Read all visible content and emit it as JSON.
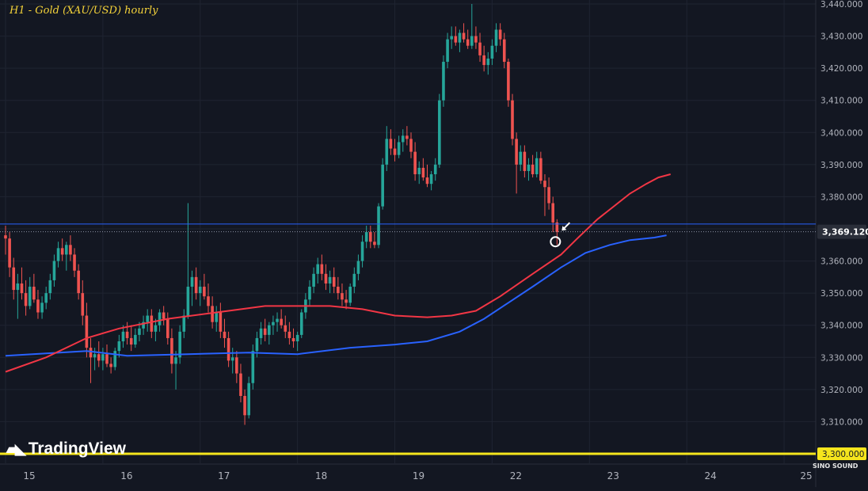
{
  "title": "H1 - Gold (XAU/USD) hourly",
  "brand": "TradingView",
  "watermark": "SINO SOUND",
  "chart_data": {
    "type": "candlestick",
    "title": "H1 - Gold (XAU/USD) hourly",
    "ylim": [
      3300,
      3440
    ],
    "yticks": [
      3310,
      3320,
      3330,
      3340,
      3350,
      3360,
      3370,
      3380,
      3390,
      3400,
      3410,
      3420,
      3430,
      3440
    ],
    "ytick_labels": [
      "3,310.000",
      "3,320.000",
      "3,330.000",
      "3,340.000",
      "3,350.000",
      "3,360.000",
      "3,370.000",
      "3,380.000",
      "3,390.000",
      "3,400.000",
      "3,410.000",
      "3,420.000",
      "3,430.000",
      "3,440.000"
    ],
    "xticks": [
      {
        "i": 0,
        "label": "15"
      },
      {
        "i": 24,
        "label": "16"
      },
      {
        "i": 48,
        "label": "17"
      },
      {
        "i": 72,
        "label": "18"
      },
      {
        "i": 96,
        "label": "19"
      },
      {
        "i": 120,
        "label": "22"
      },
      {
        "i": 144,
        "label": "23"
      },
      {
        "i": 168,
        "label": "24"
      },
      {
        "i": 192,
        "label": "25"
      }
    ],
    "price_label": "3,369.120",
    "price_value": 3369.12,
    "support_label": "3,300.000",
    "support_value": 3300,
    "resistance_level": 3371.5,
    "colors": {
      "up": "#26a69a",
      "down": "#ef5350",
      "ma_red": "#f23645",
      "ma_blue": "#2962ff",
      "support": "#f5e51d",
      "price_box": "#2a2e39",
      "bg": "#131722",
      "grid": "#1f2431"
    },
    "candles": [
      [
        3368,
        3371,
        3362,
        3367
      ],
      [
        3367,
        3369,
        3355,
        3358
      ],
      [
        3358,
        3361,
        3348,
        3351
      ],
      [
        3351,
        3356,
        3342,
        3353
      ],
      [
        3353,
        3358,
        3348,
        3350
      ],
      [
        3350,
        3354,
        3343,
        3346
      ],
      [
        3346,
        3355,
        3345,
        3352
      ],
      [
        3352,
        3356,
        3347,
        3348
      ],
      [
        3348,
        3351,
        3342,
        3344
      ],
      [
        3344,
        3349,
        3342,
        3347
      ],
      [
        3347,
        3352,
        3345,
        3350
      ],
      [
        3350,
        3356,
        3348,
        3354
      ],
      [
        3354,
        3362,
        3352,
        3360
      ],
      [
        3360,
        3366,
        3358,
        3364
      ],
      [
        3364,
        3367,
        3360,
        3362
      ],
      [
        3362,
        3366,
        3357,
        3365
      ],
      [
        3365,
        3368,
        3360,
        3362
      ],
      [
        3362,
        3364,
        3355,
        3357
      ],
      [
        3357,
        3359,
        3348,
        3350
      ],
      [
        3350,
        3354,
        3340,
        3343
      ],
      [
        3343,
        3347,
        3330,
        3333
      ],
      [
        3333,
        3336,
        3322,
        3330
      ],
      [
        3330,
        3333,
        3326,
        3331
      ],
      [
        3331,
        3335,
        3327,
        3329
      ],
      [
        3329,
        3333,
        3326,
        3331
      ],
      [
        3331,
        3334,
        3327,
        3328
      ],
      [
        3328,
        3330,
        3325,
        3327
      ],
      [
        3327,
        3333,
        3326,
        3332
      ],
      [
        3332,
        3337,
        3330,
        3335
      ],
      [
        3335,
        3340,
        3333,
        3338
      ],
      [
        3338,
        3341,
        3334,
        3336
      ],
      [
        3336,
        3340,
        3332,
        3334
      ],
      [
        3334,
        3339,
        3333,
        3337
      ],
      [
        3337,
        3341,
        3335,
        3339
      ],
      [
        3339,
        3343,
        3337,
        3341
      ],
      [
        3341,
        3345,
        3338,
        3343
      ],
      [
        3343,
        3345,
        3336,
        3338
      ],
      [
        3338,
        3342,
        3335,
        3340
      ],
      [
        3340,
        3345,
        3338,
        3344
      ],
      [
        3344,
        3346,
        3340,
        3342
      ],
      [
        3342,
        3344,
        3334,
        3336
      ],
      [
        3336,
        3339,
        3325,
        3328
      ],
      [
        3328,
        3332,
        3320,
        3330
      ],
      [
        3330,
        3340,
        3328,
        3338
      ],
      [
        3338,
        3345,
        3336,
        3343
      ],
      [
        3343,
        3378,
        3342,
        3352
      ],
      [
        3352,
        3357,
        3346,
        3355
      ],
      [
        3355,
        3358,
        3348,
        3350
      ],
      [
        3350,
        3354,
        3346,
        3352
      ],
      [
        3352,
        3356,
        3348,
        3349
      ],
      [
        3349,
        3353,
        3344,
        3346
      ],
      [
        3346,
        3349,
        3339,
        3341
      ],
      [
        3341,
        3346,
        3338,
        3344
      ],
      [
        3344,
        3347,
        3336,
        3338
      ],
      [
        3338,
        3342,
        3333,
        3336
      ],
      [
        3336,
        3338,
        3327,
        3329
      ],
      [
        3329,
        3333,
        3325,
        3330
      ],
      [
        3330,
        3332,
        3322,
        3325
      ],
      [
        3325,
        3328,
        3316,
        3318
      ],
      [
        3318,
        3320,
        3309,
        3312
      ],
      [
        3312,
        3324,
        3311,
        3322
      ],
      [
        3322,
        3334,
        3320,
        3332
      ],
      [
        3332,
        3338,
        3330,
        3336
      ],
      [
        3336,
        3341,
        3334,
        3339
      ],
      [
        3339,
        3342,
        3335,
        3337
      ],
      [
        3337,
        3341,
        3334,
        3340
      ],
      [
        3340,
        3343,
        3337,
        3341
      ],
      [
        3341,
        3344,
        3338,
        3342
      ],
      [
        3342,
        3345,
        3339,
        3340
      ],
      [
        3340,
        3343,
        3336,
        3338
      ],
      [
        3338,
        3341,
        3334,
        3336
      ],
      [
        3336,
        3339,
        3333,
        3335
      ],
      [
        3335,
        3338,
        3332,
        3337
      ],
      [
        3337,
        3345,
        3336,
        3344
      ],
      [
        3344,
        3350,
        3342,
        3348
      ],
      [
        3348,
        3354,
        3346,
        3352
      ],
      [
        3352,
        3358,
        3350,
        3356
      ],
      [
        3356,
        3361,
        3353,
        3359
      ],
      [
        3359,
        3362,
        3354,
        3356
      ],
      [
        3356,
        3359,
        3351,
        3353
      ],
      [
        3353,
        3357,
        3350,
        3355
      ],
      [
        3355,
        3358,
        3350,
        3352
      ],
      [
        3352,
        3355,
        3348,
        3350
      ],
      [
        3350,
        3353,
        3346,
        3348
      ],
      [
        3348,
        3351,
        3345,
        3347
      ],
      [
        3347,
        3353,
        3346,
        3352
      ],
      [
        3352,
        3358,
        3350,
        3356
      ],
      [
        3356,
        3362,
        3354,
        3360
      ],
      [
        3360,
        3368,
        3358,
        3366
      ],
      [
        3366,
        3371,
        3364,
        3369
      ],
      [
        3369,
        3371,
        3364,
        3366
      ],
      [
        3366,
        3369,
        3364,
        3365
      ],
      [
        3365,
        3378,
        3364,
        3377
      ],
      [
        3377,
        3392,
        3376,
        3390
      ],
      [
        3390,
        3402,
        3388,
        3398
      ],
      [
        3398,
        3401,
        3393,
        3395
      ],
      [
        3395,
        3398,
        3391,
        3393
      ],
      [
        3393,
        3399,
        3392,
        3397
      ],
      [
        3397,
        3401,
        3394,
        3399
      ],
      [
        3399,
        3402,
        3396,
        3398
      ],
      [
        3398,
        3400,
        3392,
        3394
      ],
      [
        3394,
        3397,
        3385,
        3387
      ],
      [
        3387,
        3391,
        3384,
        3389
      ],
      [
        3389,
        3392,
        3385,
        3386
      ],
      [
        3386,
        3390,
        3383,
        3384
      ],
      [
        3384,
        3388,
        3382,
        3387
      ],
      [
        3387,
        3392,
        3385,
        3390
      ],
      [
        3390,
        3412,
        3389,
        3410
      ],
      [
        3410,
        3424,
        3408,
        3422
      ],
      [
        3422,
        3431,
        3420,
        3429
      ],
      [
        3429,
        3433,
        3426,
        3430
      ],
      [
        3430,
        3433,
        3427,
        3428
      ],
      [
        3428,
        3432,
        3425,
        3431
      ],
      [
        3431,
        3434,
        3428,
        3429
      ],
      [
        3429,
        3432,
        3426,
        3427
      ],
      [
        3427,
        3440,
        3426,
        3430
      ],
      [
        3430,
        3433,
        3426,
        3428
      ],
      [
        3428,
        3431,
        3422,
        3424
      ],
      [
        3424,
        3427,
        3419,
        3421
      ],
      [
        3421,
        3425,
        3418,
        3423
      ],
      [
        3423,
        3429,
        3421,
        3427
      ],
      [
        3427,
        3434,
        3425,
        3432
      ],
      [
        3432,
        3434,
        3427,
        3429
      ],
      [
        3429,
        3431,
        3420,
        3422
      ],
      [
        3422,
        3423,
        3408,
        3410
      ],
      [
        3410,
        3412,
        3396,
        3398
      ],
      [
        3398,
        3400,
        3381,
        3390
      ],
      [
        3390,
        3396,
        3388,
        3394
      ],
      [
        3394,
        3396,
        3386,
        3388
      ],
      [
        3388,
        3392,
        3385,
        3390
      ],
      [
        3390,
        3393,
        3386,
        3387
      ],
      [
        3387,
        3394,
        3386,
        3392
      ],
      [
        3392,
        3394,
        3384,
        3385
      ],
      [
        3385,
        3387,
        3374,
        3383
      ],
      [
        3383,
        3386,
        3376,
        3378
      ],
      [
        3378,
        3380,
        3369,
        3372
      ],
      [
        3372,
        3373,
        3365,
        3369
      ]
    ],
    "ma_red": [
      [
        0,
        3325.5
      ],
      [
        10,
        3330
      ],
      [
        20,
        3336
      ],
      [
        28,
        3339
      ],
      [
        40,
        3342
      ],
      [
        55,
        3344.5
      ],
      [
        64,
        3346
      ],
      [
        72,
        3346
      ],
      [
        80,
        3346
      ],
      [
        88,
        3345
      ],
      [
        96,
        3343
      ],
      [
        104,
        3342.5
      ],
      [
        110,
        3343
      ],
      [
        116,
        3344.5
      ],
      [
        122,
        3349
      ],
      [
        130,
        3356
      ],
      [
        137,
        3362
      ],
      [
        141,
        3367
      ],
      [
        146,
        3373
      ],
      [
        150,
        3377
      ],
      [
        154,
        3381
      ],
      [
        158,
        3384
      ],
      [
        161,
        3386
      ],
      [
        164,
        3387
      ]
    ],
    "ma_blue": [
      [
        0,
        3330.5
      ],
      [
        20,
        3332
      ],
      [
        30,
        3330.5
      ],
      [
        45,
        3331
      ],
      [
        60,
        3331.5
      ],
      [
        72,
        3331
      ],
      [
        85,
        3333
      ],
      [
        96,
        3334
      ],
      [
        104,
        3335
      ],
      [
        112,
        3338
      ],
      [
        118,
        3342
      ],
      [
        124,
        3347
      ],
      [
        130,
        3352
      ],
      [
        137,
        3358
      ],
      [
        143,
        3362.5
      ],
      [
        149,
        3365
      ],
      [
        154,
        3366.5
      ],
      [
        160,
        3367.3
      ],
      [
        163,
        3368
      ]
    ]
  }
}
